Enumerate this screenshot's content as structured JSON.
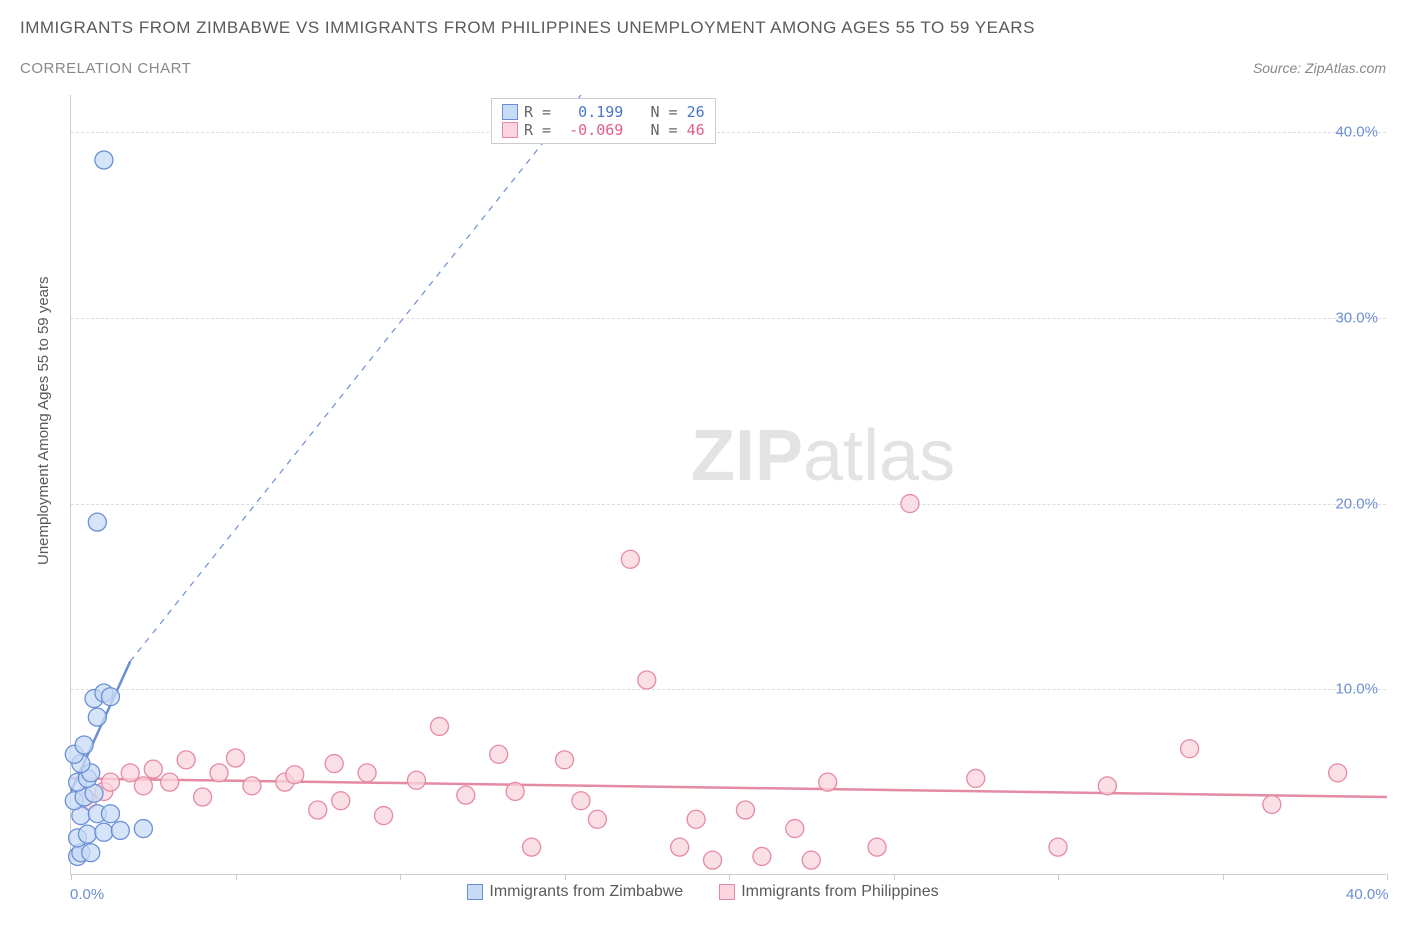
{
  "title": "IMMIGRANTS FROM ZIMBABWE VS IMMIGRANTS FROM PHILIPPINES UNEMPLOYMENT AMONG AGES 55 TO 59 YEARS",
  "subtitle": "CORRELATION CHART",
  "source_prefix": "Source: ",
  "source_name": "ZipAtlas.com",
  "y_axis_label": "Unemployment Among Ages 55 to 59 years",
  "watermark_zip": "ZIP",
  "watermark_atlas": "atlas",
  "chart": {
    "type": "scatter",
    "xlim": [
      0,
      40
    ],
    "ylim": [
      0,
      42
    ],
    "xticks": [
      0,
      5,
      10,
      15,
      20,
      25,
      30,
      35,
      40
    ],
    "xtick_labels_sparse": {
      "0": "0.0%",
      "40": "40.0%"
    },
    "yticks": [
      10,
      20,
      30,
      40
    ],
    "ytick_labels": [
      "10.0%",
      "20.0%",
      "30.0%",
      "40.0%"
    ],
    "background_color": "#ffffff",
    "grid_color": "#dddddd",
    "axis_color": "#cccccc",
    "marker_radius": 9
  },
  "series_a": {
    "label": "Immigrants from Zimbabwe",
    "fill_color": "#c7dbf5",
    "stroke_color": "#6b8fd4",
    "text_color": "#4a76c9",
    "R": "0.199",
    "N": "26",
    "trend": {
      "x1": 0,
      "y1": 4.5,
      "x2": 1.8,
      "y2": 11.5,
      "dash_extend_to_x": 15.5,
      "dash_extend_to_y": 42
    },
    "points": [
      {
        "x": 0.2,
        "y": 1.0
      },
      {
        "x": 0.3,
        "y": 1.2
      },
      {
        "x": 0.6,
        "y": 1.2
      },
      {
        "x": 0.2,
        "y": 2.0
      },
      {
        "x": 0.5,
        "y": 2.2
      },
      {
        "x": 1.0,
        "y": 2.3
      },
      {
        "x": 1.5,
        "y": 2.4
      },
      {
        "x": 2.2,
        "y": 2.5
      },
      {
        "x": 0.3,
        "y": 3.2
      },
      {
        "x": 0.8,
        "y": 3.3
      },
      {
        "x": 1.2,
        "y": 3.3
      },
      {
        "x": 0.1,
        "y": 4.0
      },
      {
        "x": 0.4,
        "y": 4.2
      },
      {
        "x": 0.7,
        "y": 4.4
      },
      {
        "x": 0.2,
        "y": 5.0
      },
      {
        "x": 0.5,
        "y": 5.2
      },
      {
        "x": 0.6,
        "y": 5.5
      },
      {
        "x": 0.3,
        "y": 6.0
      },
      {
        "x": 0.1,
        "y": 6.5
      },
      {
        "x": 0.4,
        "y": 7.0
      },
      {
        "x": 0.8,
        "y": 8.5
      },
      {
        "x": 0.7,
        "y": 9.5
      },
      {
        "x": 1.0,
        "y": 9.8
      },
      {
        "x": 1.2,
        "y": 9.6
      },
      {
        "x": 0.8,
        "y": 19.0
      },
      {
        "x": 1.0,
        "y": 38.5
      }
    ]
  },
  "series_b": {
    "label": "Immigrants from Philippines",
    "fill_color": "#fad4de",
    "stroke_color": "#e58aa3",
    "text_color": "#e06088",
    "R": "-0.069",
    "N": "46",
    "trend": {
      "x1": 0,
      "y1": 5.2,
      "x2": 40,
      "y2": 4.2
    },
    "points": [
      {
        "x": 0.5,
        "y": 4.0
      },
      {
        "x": 1.0,
        "y": 4.5
      },
      {
        "x": 1.2,
        "y": 5.0
      },
      {
        "x": 1.8,
        "y": 5.5
      },
      {
        "x": 2.2,
        "y": 4.8
      },
      {
        "x": 2.5,
        "y": 5.7
      },
      {
        "x": 3.0,
        "y": 5.0
      },
      {
        "x": 3.5,
        "y": 6.2
      },
      {
        "x": 4.0,
        "y": 4.2
      },
      {
        "x": 4.5,
        "y": 5.5
      },
      {
        "x": 5.0,
        "y": 6.3
      },
      {
        "x": 5.5,
        "y": 4.8
      },
      {
        "x": 6.5,
        "y": 5.0
      },
      {
        "x": 6.8,
        "y": 5.4
      },
      {
        "x": 7.5,
        "y": 3.5
      },
      {
        "x": 8.0,
        "y": 6.0
      },
      {
        "x": 8.2,
        "y": 4.0
      },
      {
        "x": 9.0,
        "y": 5.5
      },
      {
        "x": 9.5,
        "y": 3.2
      },
      {
        "x": 10.5,
        "y": 5.1
      },
      {
        "x": 11.2,
        "y": 8.0
      },
      {
        "x": 12.0,
        "y": 4.3
      },
      {
        "x": 13.0,
        "y": 6.5
      },
      {
        "x": 13.5,
        "y": 4.5
      },
      {
        "x": 14.0,
        "y": 1.5
      },
      {
        "x": 15.0,
        "y": 6.2
      },
      {
        "x": 15.5,
        "y": 4.0
      },
      {
        "x": 16.0,
        "y": 3.0
      },
      {
        "x": 17.0,
        "y": 17.0
      },
      {
        "x": 17.5,
        "y": 10.5
      },
      {
        "x": 18.5,
        "y": 1.5
      },
      {
        "x": 19.0,
        "y": 3.0
      },
      {
        "x": 19.5,
        "y": 0.8
      },
      {
        "x": 20.5,
        "y": 3.5
      },
      {
        "x": 21.0,
        "y": 1.0
      },
      {
        "x": 22.0,
        "y": 2.5
      },
      {
        "x": 22.5,
        "y": 0.8
      },
      {
        "x": 23.0,
        "y": 5.0
      },
      {
        "x": 24.5,
        "y": 1.5
      },
      {
        "x": 25.5,
        "y": 20.0
      },
      {
        "x": 27.5,
        "y": 5.2
      },
      {
        "x": 30.0,
        "y": 1.5
      },
      {
        "x": 31.5,
        "y": 4.8
      },
      {
        "x": 34.0,
        "y": 6.8
      },
      {
        "x": 36.5,
        "y": 3.8
      },
      {
        "x": 38.5,
        "y": 5.5
      }
    ]
  },
  "stats_labels": {
    "R": "R =",
    "N": "N ="
  },
  "legend": {
    "items": [
      {
        "key": "series_a"
      },
      {
        "key": "series_b"
      }
    ]
  }
}
